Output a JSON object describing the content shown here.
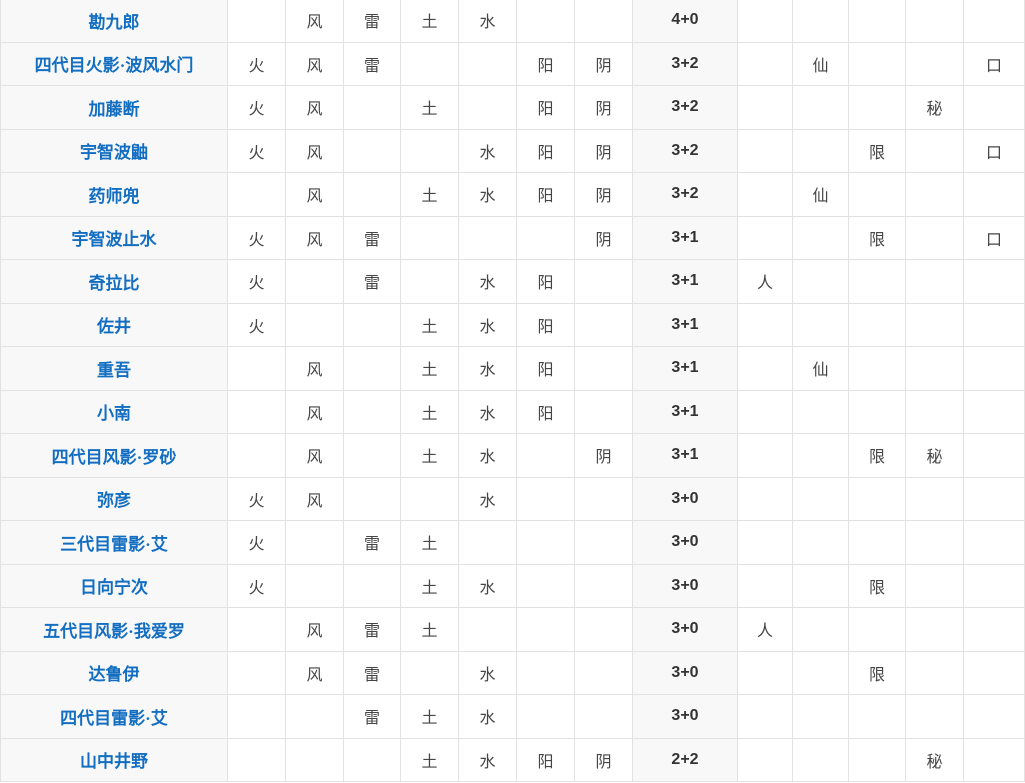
{
  "colors": {
    "link_blue": "#136ec2",
    "element_text": "#454545",
    "total_text": "#333333",
    "shaded_cell_bg": "#f8f8f8",
    "cell_bg": "#ffffff",
    "grid_border": "#e2e2e2"
  },
  "table": {
    "column_keys": [
      "fire",
      "wind",
      "lightning",
      "earth",
      "water",
      "yang",
      "yin",
      "total",
      "human",
      "sage",
      "limit",
      "secret",
      "mouth"
    ],
    "rows": [
      {
        "name": "勘九郎",
        "cells": [
          "",
          "风",
          "雷",
          "土",
          "水",
          "",
          "",
          "4+0",
          "",
          "",
          "",
          "",
          ""
        ]
      },
      {
        "name": "四代目火影·波风水门",
        "cells": [
          "火",
          "风",
          "雷",
          "",
          "",
          "阳",
          "阴",
          "3+2",
          "",
          "仙",
          "",
          "",
          "口"
        ]
      },
      {
        "name": "加藤断",
        "cells": [
          "火",
          "风",
          "",
          "土",
          "",
          "阳",
          "阴",
          "3+2",
          "",
          "",
          "",
          "秘",
          ""
        ]
      },
      {
        "name": "宇智波鼬",
        "cells": [
          "火",
          "风",
          "",
          "",
          "水",
          "阳",
          "阴",
          "3+2",
          "",
          "",
          "限",
          "",
          "口"
        ]
      },
      {
        "name": "药师兜",
        "cells": [
          "",
          "风",
          "",
          "土",
          "水",
          "阳",
          "阴",
          "3+2",
          "",
          "仙",
          "",
          "",
          ""
        ]
      },
      {
        "name": "宇智波止水",
        "cells": [
          "火",
          "风",
          "雷",
          "",
          "",
          "",
          "阴",
          "3+1",
          "",
          "",
          "限",
          "",
          "口"
        ]
      },
      {
        "name": "奇拉比",
        "cells": [
          "火",
          "",
          "雷",
          "",
          "水",
          "阳",
          "",
          "3+1",
          "人",
          "",
          "",
          "",
          ""
        ]
      },
      {
        "name": "佐井",
        "cells": [
          "火",
          "",
          "",
          "土",
          "水",
          "阳",
          "",
          "3+1",
          "",
          "",
          "",
          "",
          ""
        ]
      },
      {
        "name": "重吾",
        "cells": [
          "",
          "风",
          "",
          "土",
          "水",
          "阳",
          "",
          "3+1",
          "",
          "仙",
          "",
          "",
          ""
        ]
      },
      {
        "name": "小南",
        "cells": [
          "",
          "风",
          "",
          "土",
          "水",
          "阳",
          "",
          "3+1",
          "",
          "",
          "",
          "",
          ""
        ]
      },
      {
        "name": "四代目风影·罗砂",
        "cells": [
          "",
          "风",
          "",
          "土",
          "水",
          "",
          "阴",
          "3+1",
          "",
          "",
          "限",
          "秘",
          ""
        ]
      },
      {
        "name": "弥彦",
        "cells": [
          "火",
          "风",
          "",
          "",
          "水",
          "",
          "",
          "3+0",
          "",
          "",
          "",
          "",
          ""
        ]
      },
      {
        "name": "三代目雷影·艾",
        "cells": [
          "火",
          "",
          "雷",
          "土",
          "",
          "",
          "",
          "3+0",
          "",
          "",
          "",
          "",
          ""
        ]
      },
      {
        "name": "日向宁次",
        "cells": [
          "火",
          "",
          "",
          "土",
          "水",
          "",
          "",
          "3+0",
          "",
          "",
          "限",
          "",
          ""
        ]
      },
      {
        "name": "五代目风影·我爱罗",
        "cells": [
          "",
          "风",
          "雷",
          "土",
          "",
          "",
          "",
          "3+0",
          "人",
          "",
          "",
          "",
          ""
        ]
      },
      {
        "name": "达鲁伊",
        "cells": [
          "",
          "风",
          "雷",
          "",
          "水",
          "",
          "",
          "3+0",
          "",
          "",
          "限",
          "",
          ""
        ]
      },
      {
        "name": "四代目雷影·艾",
        "cells": [
          "",
          "",
          "雷",
          "土",
          "水",
          "",
          "",
          "3+0",
          "",
          "",
          "",
          "",
          ""
        ]
      },
      {
        "name": "山中井野",
        "cells": [
          "",
          "",
          "",
          "土",
          "水",
          "阳",
          "阴",
          "2+2",
          "",
          "",
          "",
          "秘",
          ""
        ]
      }
    ]
  }
}
